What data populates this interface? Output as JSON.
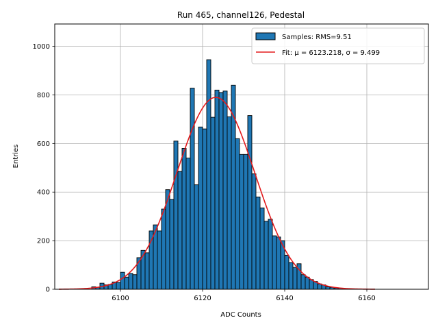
{
  "chart_data": {
    "type": "bar",
    "title": "Run 465, channel126, Pedestal",
    "xlabel": "ADC Counts",
    "ylabel": "Entries",
    "xlim": [
      6084,
      6175
    ],
    "ylim": [
      0,
      1092
    ],
    "xticks": [
      6100,
      6120,
      6140,
      6160
    ],
    "yticks": [
      0,
      200,
      400,
      600,
      800,
      1000
    ],
    "grid": true,
    "legend_position": "top-right",
    "histogram": {
      "name": "Samples: RMS=9.51",
      "bin_width": 1,
      "color": "#1f77b4",
      "edge_color": "#000000",
      "bins": [
        [
          6093,
          10
        ],
        [
          6094,
          8
        ],
        [
          6095,
          25
        ],
        [
          6096,
          18
        ],
        [
          6097,
          20
        ],
        [
          6098,
          30
        ],
        [
          6099,
          28
        ],
        [
          6100,
          70
        ],
        [
          6101,
          50
        ],
        [
          6102,
          65
        ],
        [
          6103,
          60
        ],
        [
          6104,
          130
        ],
        [
          6105,
          160
        ],
        [
          6106,
          150
        ],
        [
          6107,
          240
        ],
        [
          6108,
          265
        ],
        [
          6109,
          240
        ],
        [
          6110,
          330
        ],
        [
          6111,
          410
        ],
        [
          6112,
          370
        ],
        [
          6113,
          610
        ],
        [
          6114,
          485
        ],
        [
          6115,
          580
        ],
        [
          6116,
          540
        ],
        [
          6117,
          828
        ],
        [
          6118,
          430
        ],
        [
          6119,
          668
        ],
        [
          6120,
          660
        ],
        [
          6121,
          945
        ],
        [
          6122,
          708
        ],
        [
          6123,
          820
        ],
        [
          6124,
          810
        ],
        [
          6125,
          816
        ],
        [
          6126,
          710
        ],
        [
          6127,
          840
        ],
        [
          6128,
          620
        ],
        [
          6129,
          555
        ],
        [
          6130,
          555
        ],
        [
          6131,
          715
        ],
        [
          6132,
          475
        ],
        [
          6133,
          380
        ],
        [
          6134,
          335
        ],
        [
          6135,
          280
        ],
        [
          6136,
          288
        ],
        [
          6137,
          220
        ],
        [
          6138,
          215
        ],
        [
          6139,
          200
        ],
        [
          6140,
          140
        ],
        [
          6141,
          110
        ],
        [
          6142,
          90
        ],
        [
          6143,
          105
        ],
        [
          6144,
          60
        ],
        [
          6145,
          50
        ],
        [
          6146,
          40
        ],
        [
          6147,
          32
        ],
        [
          6148,
          22
        ],
        [
          6149,
          18
        ],
        [
          6150,
          10
        ],
        [
          6151,
          8
        ],
        [
          6152,
          5
        ],
        [
          6153,
          4
        ],
        [
          6154,
          3
        ]
      ]
    },
    "fit": {
      "name": "Fit: μ = 6123.218, σ = 9.499",
      "color": "#e31a1c",
      "mu": 6123.218,
      "sigma": 9.499,
      "amplitude": 790,
      "x_range": [
        6085,
        6162
      ]
    }
  }
}
